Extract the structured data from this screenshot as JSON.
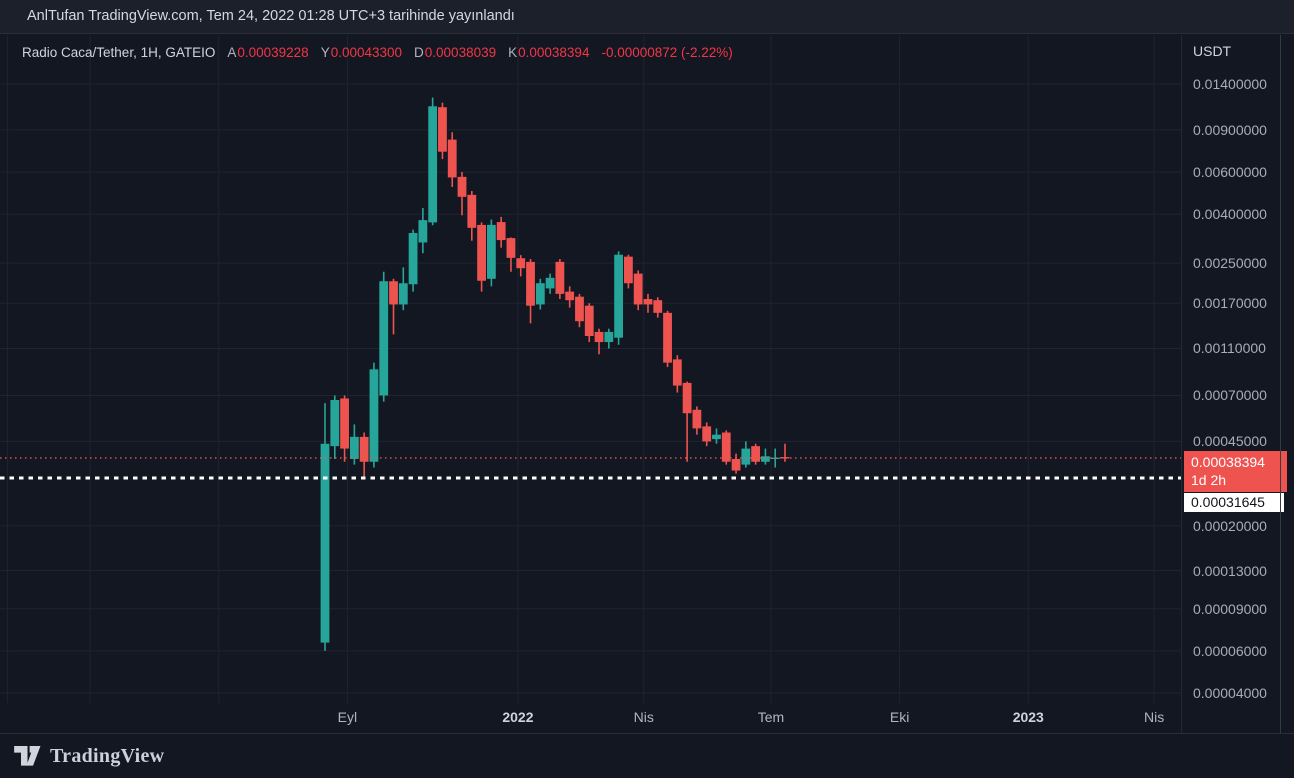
{
  "topbar": {
    "attribution": "AnlTufan TradingView.com, Tem 24, 2022 01:28 UTC+3 tarihinde yayınlandı"
  },
  "header": {
    "symbol_title": "Radio Caca/Tether, 1H, GATEIO",
    "quote": {
      "open_label": "A",
      "open": "0.00039228",
      "high_label": "Y",
      "high": "0.00043300",
      "low_label": "D",
      "low": "0.00038039",
      "close_label": "K",
      "close": "0.00038394",
      "change": "-0.00000872 (-2.22%)"
    }
  },
  "price_scale": {
    "currency_label": "USDT",
    "tick_values": [
      0.014,
      0.009,
      0.006,
      0.004,
      0.0025,
      0.0017,
      0.0011,
      0.0007,
      0.00045,
      0.0002,
      0.00013,
      9e-05,
      6e-05,
      4e-05
    ],
    "last_price_badge": {
      "price": "0.00038394",
      "countdown": "1d 2h"
    },
    "alert_badge": {
      "price": "0.00031645"
    }
  },
  "time_scale": {
    "ticks": [
      {
        "label": "",
        "date": "2021-01-01",
        "bold": false
      },
      {
        "label": "",
        "date": "2021-03-01",
        "bold": false
      },
      {
        "label": "",
        "date": "2021-06-01",
        "bold": false
      },
      {
        "label": "Eyl",
        "date": "2021-09-01",
        "bold": false
      },
      {
        "label": "2022",
        "date": "2022-01-01",
        "bold": true
      },
      {
        "label": "Nis",
        "date": "2022-04-01",
        "bold": false
      },
      {
        "label": "Tem",
        "date": "2022-07-01",
        "bold": false
      },
      {
        "label": "Eki",
        "date": "2022-10-01",
        "bold": false
      },
      {
        "label": "2023",
        "date": "2023-01-01",
        "bold": true
      },
      {
        "label": "Nis",
        "date": "2023-04-01",
        "bold": false
      }
    ]
  },
  "footer": {
    "brand": "TradingView"
  },
  "colors": {
    "up": "#26a69a",
    "down": "#ef5350",
    "header_value_red": "#f23645",
    "background": "#131722",
    "grid": "#1e2430",
    "axis_text": "#a9adb8",
    "text": "#d1d4dc",
    "alert_line": "#ffffff"
  },
  "chart_data": {
    "type": "candlestick",
    "title": "Radio Caca/Tether, 1H, GATEIO",
    "ylabel": "USDT",
    "scale": "log",
    "grid": true,
    "ylim": [
      3.63e-05,
      0.0224
    ],
    "current_price": 0.00038394,
    "current_price_countdown": "1d 2h",
    "alert_price": 0.00031645,
    "candles_note": "weekly-spaced bars as rendered; [date, open, high, low, close]",
    "candles": [
      [
        "2021-08-16",
        6.5e-05,
        0.00065,
        6e-05,
        0.00044
      ],
      [
        "2021-08-23",
        0.00043,
        0.0007,
        0.00038,
        0.00067
      ],
      [
        "2021-08-30",
        0.00068,
        0.0007,
        0.00037,
        0.00042
      ],
      [
        "2021-09-06",
        0.00038,
        0.00053,
        0.00036,
        0.00047
      ],
      [
        "2021-09-13",
        0.00047,
        0.00049,
        0.00032,
        0.00037
      ],
      [
        "2021-09-20",
        0.00037,
        0.00096,
        0.00035,
        0.0009
      ],
      [
        "2021-09-27",
        0.0007,
        0.0023,
        0.00066,
        0.0021
      ],
      [
        "2021-10-04",
        0.0021,
        0.00215,
        0.00126,
        0.00168
      ],
      [
        "2021-10-11",
        0.00168,
        0.0024,
        0.00159,
        0.00206
      ],
      [
        "2021-10-18",
        0.00204,
        0.00345,
        0.0019,
        0.00334
      ],
      [
        "2021-10-25",
        0.00305,
        0.00425,
        0.00275,
        0.00378
      ],
      [
        "2021-11-01",
        0.0037,
        0.0123,
        0.0036,
        0.0113
      ],
      [
        "2021-11-08",
        0.0112,
        0.0117,
        0.0068,
        0.0073
      ],
      [
        "2021-11-15",
        0.0082,
        0.0088,
        0.0052,
        0.0057
      ],
      [
        "2021-11-22",
        0.00573,
        0.006,
        0.00396,
        0.00473
      ],
      [
        "2021-11-29",
        0.00482,
        0.005,
        0.0031,
        0.00351
      ],
      [
        "2021-12-06",
        0.00361,
        0.0037,
        0.0019,
        0.00211
      ],
      [
        "2021-12-13",
        0.00215,
        0.0038,
        0.002,
        0.00361
      ],
      [
        "2021-12-20",
        0.00371,
        0.0039,
        0.0029,
        0.00312
      ],
      [
        "2021-12-27",
        0.00318,
        0.0032,
        0.0023,
        0.00263
      ],
      [
        "2022-01-03",
        0.00262,
        0.0027,
        0.0022,
        0.00238
      ],
      [
        "2022-01-10",
        0.00253,
        0.0026,
        0.0014,
        0.00166
      ],
      [
        "2022-01-17",
        0.00168,
        0.00215,
        0.0016,
        0.00206
      ],
      [
        "2022-01-24",
        0.00196,
        0.00226,
        0.00186,
        0.00217
      ],
      [
        "2022-01-31",
        0.00253,
        0.0026,
        0.00177,
        0.00186
      ],
      [
        "2022-02-07",
        0.0019,
        0.002,
        0.00163,
        0.00175
      ],
      [
        "2022-02-14",
        0.00181,
        0.00186,
        0.00135,
        0.00143
      ],
      [
        "2022-02-21",
        0.00166,
        0.0017,
        0.00117,
        0.00124
      ],
      [
        "2022-02-28",
        0.00129,
        0.00133,
        0.00104,
        0.00117
      ],
      [
        "2022-03-07",
        0.00117,
        0.00133,
        0.0011,
        0.00129
      ],
      [
        "2022-03-14",
        0.00122,
        0.0028,
        0.00114,
        0.00271
      ],
      [
        "2022-03-21",
        0.00266,
        0.00271,
        0.00196,
        0.00206
      ],
      [
        "2022-03-28",
        0.00226,
        0.00233,
        0.00159,
        0.00168
      ],
      [
        "2022-04-04",
        0.00177,
        0.00186,
        0.00155,
        0.00168
      ],
      [
        "2022-04-11",
        0.00175,
        0.0018,
        0.00148,
        0.00155
      ],
      [
        "2022-04-18",
        0.00155,
        0.00158,
        0.00092,
        0.00096
      ],
      [
        "2022-04-25",
        0.00099,
        0.00103,
        0.00072,
        0.00077
      ],
      [
        "2022-05-02",
        0.00079,
        0.0008,
        0.00037,
        0.00059
      ],
      [
        "2022-05-09",
        0.00061,
        0.00063,
        0.00048,
        0.00051
      ],
      [
        "2022-05-16",
        0.00052,
        0.00054,
        0.00043,
        0.00045
      ],
      [
        "2022-05-23",
        0.00046,
        0.00051,
        0.00044,
        0.00048
      ],
      [
        "2022-05-30",
        0.00049,
        0.0005,
        0.00036,
        0.00037
      ],
      [
        "2022-06-06",
        0.00038,
        0.0004,
        0.00033,
        0.00034
      ],
      [
        "2022-06-13",
        0.00036,
        0.00045,
        0.00035,
        0.00042
      ],
      [
        "2022-06-20",
        0.00043,
        0.00044,
        0.00036,
        0.00037
      ],
      [
        "2022-06-27",
        0.00037,
        0.00042,
        0.00036,
        0.00039
      ],
      [
        "2022-07-04",
        0.00038,
        0.00042,
        0.00035,
        0.000385
      ],
      [
        "2022-07-11",
        0.000387,
        0.00044,
        0.00037,
        0.00038394
      ]
    ]
  }
}
